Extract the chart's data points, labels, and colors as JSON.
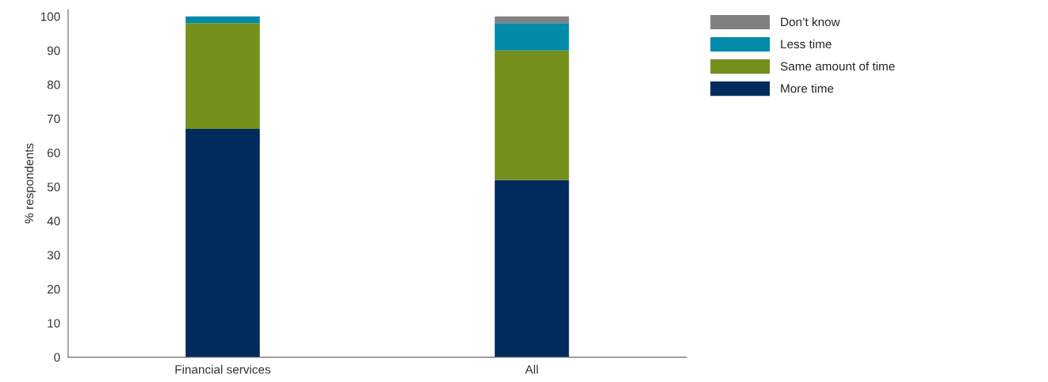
{
  "chart_data": {
    "type": "bar",
    "stacked": true,
    "ylabel": "% respondents",
    "categories": [
      "Financial services",
      "All"
    ],
    "series": [
      {
        "name": "More time",
        "color": "#002b5c",
        "values": [
          67,
          52
        ]
      },
      {
        "name": "Same amount of time",
        "color": "#76901e",
        "values": [
          31,
          38
        ]
      },
      {
        "name": "Less time",
        "color": "#008aaa",
        "values": [
          2,
          8
        ]
      },
      {
        "name": "Don’t know",
        "color": "#808080",
        "values": [
          0,
          2
        ]
      }
    ],
    "ylim": [
      0,
      102
    ],
    "yticks": [
      0,
      10,
      20,
      30,
      40,
      50,
      60,
      70,
      80,
      90,
      100
    ],
    "grid": false,
    "legend": "right"
  }
}
